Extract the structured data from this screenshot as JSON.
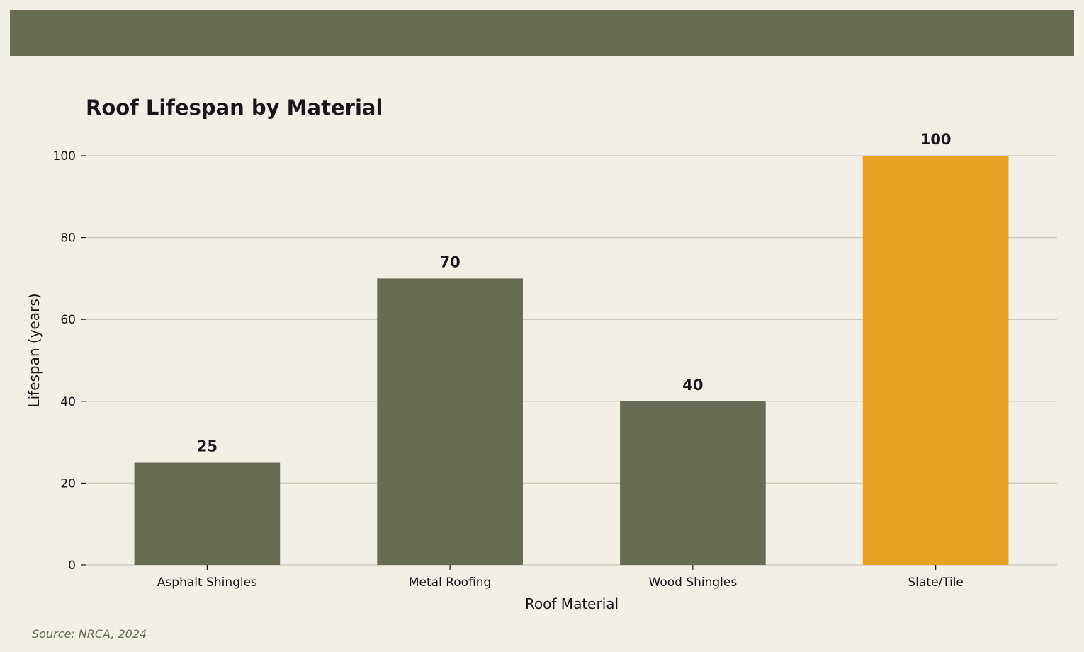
{
  "chart_data": {
    "type": "bar",
    "title": "Roof Lifespan by Material",
    "xlabel": "Roof Material",
    "ylabel": "Lifespan (years)",
    "categories": [
      "Asphalt Shingles",
      "Metal Roofing",
      "Wood Shingles",
      "Slate/Tile"
    ],
    "values": [
      25,
      70,
      40,
      100
    ],
    "data_labels": [
      "25",
      "70",
      "40",
      "100"
    ],
    "ylim": [
      0,
      100
    ],
    "yticks": [
      0,
      20,
      40,
      60,
      80,
      100
    ],
    "grid": "horizontal",
    "colors": {
      "default_bar": "#676c54",
      "highlight_bar": "#e8a224",
      "highlight_category": "Slate/Tile",
      "gridline": "#cfcdc0",
      "background": "#f2efe6",
      "text": "#1b141c"
    }
  },
  "source": "Source: NRCA, 2024"
}
